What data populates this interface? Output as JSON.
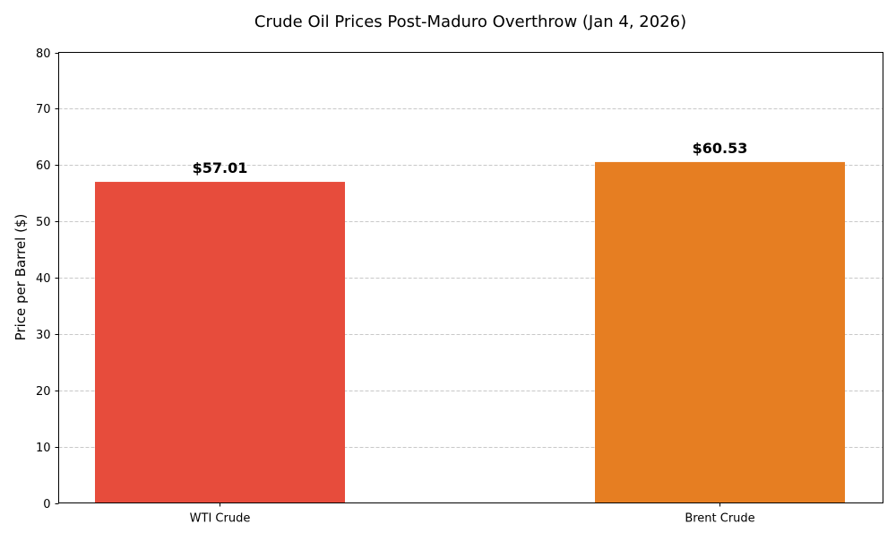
{
  "chart_data": {
    "type": "bar",
    "title": "Crude Oil Prices Post-Maduro Overthrow (Jan 4, 2026)",
    "xlabel": "",
    "ylabel": "Price per Barrel ($)",
    "ylim": [
      0,
      80
    ],
    "yticks": [
      "0",
      "10",
      "20",
      "30",
      "40",
      "50",
      "60",
      "70",
      "80"
    ],
    "categories": [
      "WTI Crude",
      "Brent Crude"
    ],
    "values": [
      57.01,
      60.53
    ],
    "data_labels": [
      "$57.01",
      "$60.53"
    ],
    "colors": [
      "#e74c3c",
      "#e67e22"
    ],
    "grid": "y-axis dashed"
  }
}
